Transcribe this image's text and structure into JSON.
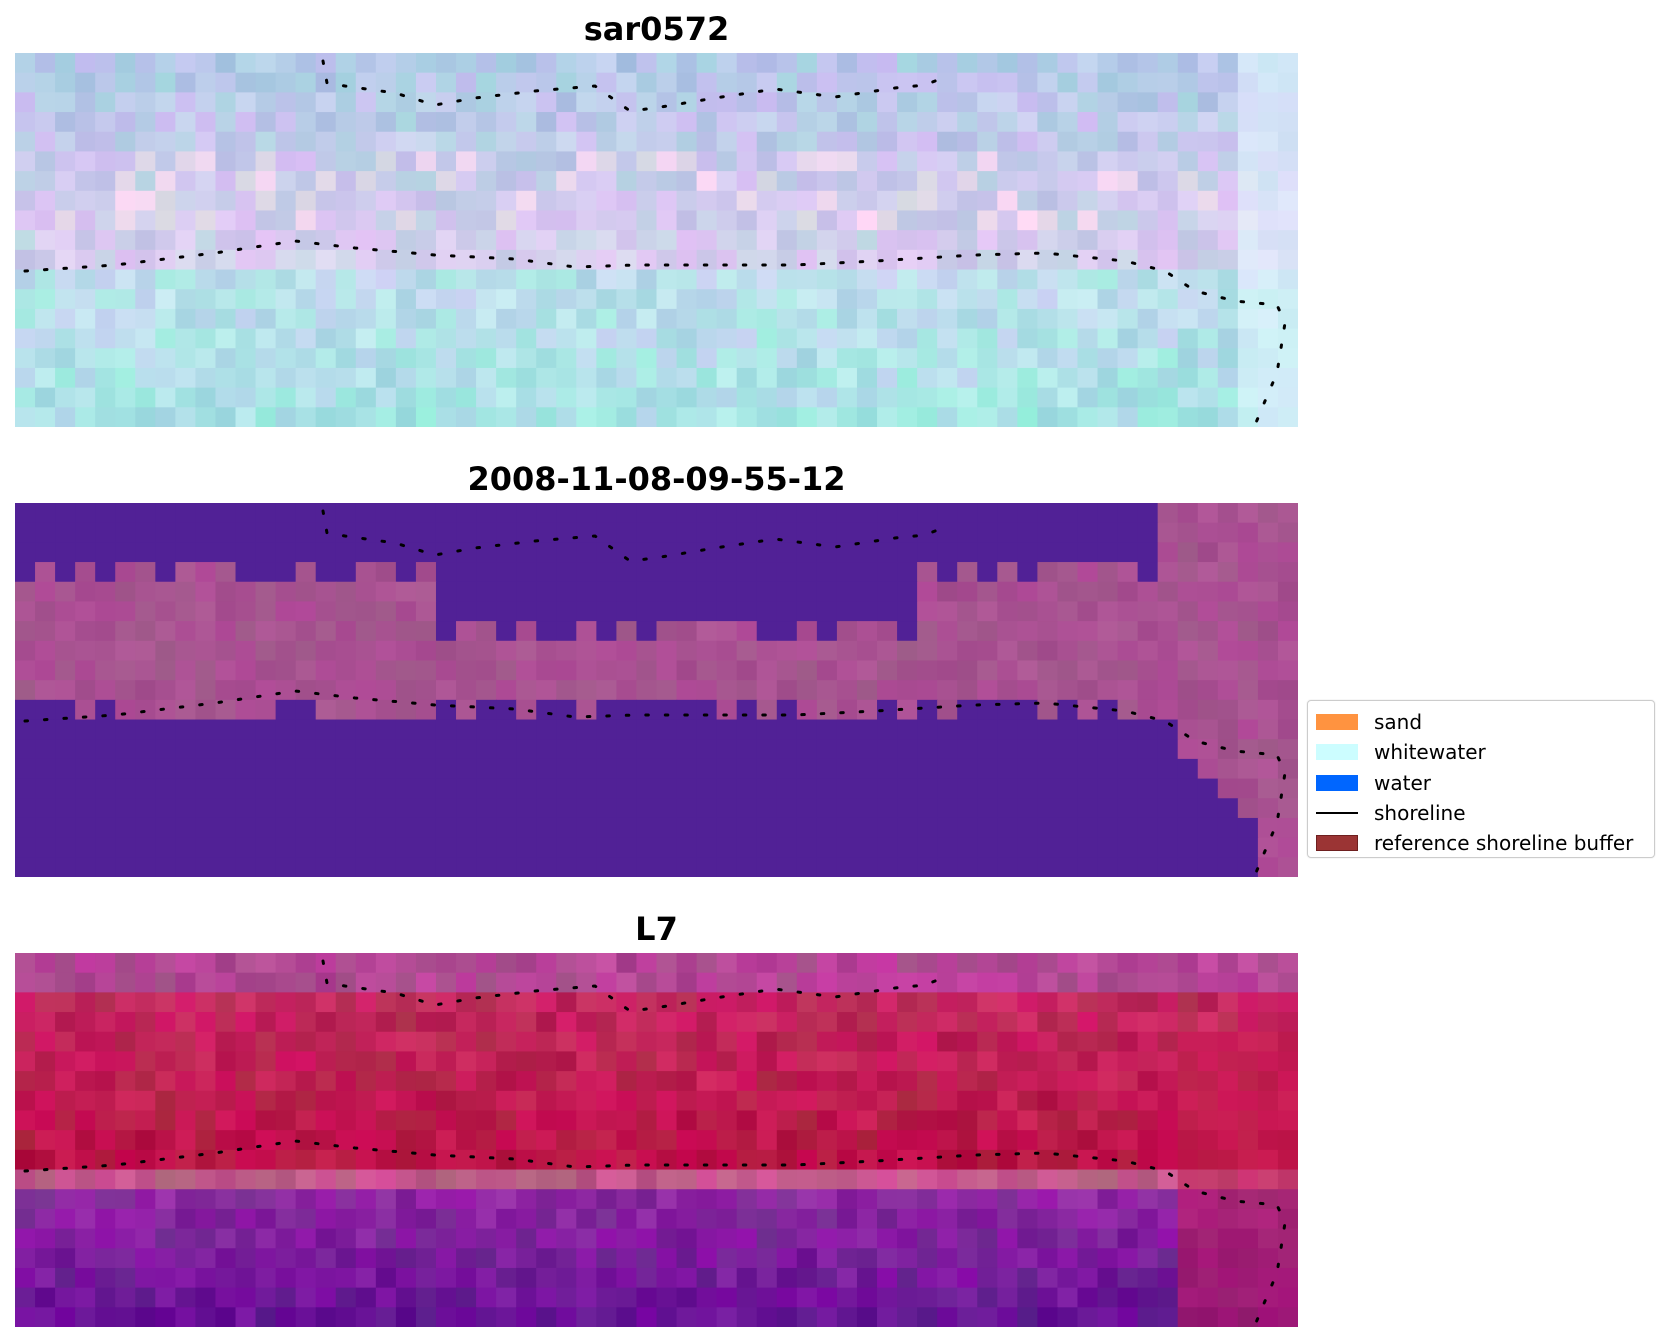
{
  "panels": [
    {
      "title": "sar0572",
      "style": "sar"
    },
    {
      "title": "2008-11-08-09-55-12",
      "style": "class"
    },
    {
      "title": "L7",
      "style": "index"
    }
  ],
  "legend": {
    "items": [
      {
        "label": "sand",
        "kind": "patch",
        "color": "#ff9340",
        "edge": "#ff9340"
      },
      {
        "label": "whitewater",
        "kind": "patch",
        "color": "#ccfdff",
        "edge": "#ccfdff"
      },
      {
        "label": "water",
        "kind": "patch",
        "color": "#0066ff",
        "edge": "#0066ff"
      },
      {
        "label": "shoreline",
        "kind": "line",
        "color": "#000000"
      },
      {
        "label": "reference shoreline buffer",
        "kind": "patch",
        "color": "#9b3434",
        "edge": "#6e1f1f"
      }
    ]
  }
}
